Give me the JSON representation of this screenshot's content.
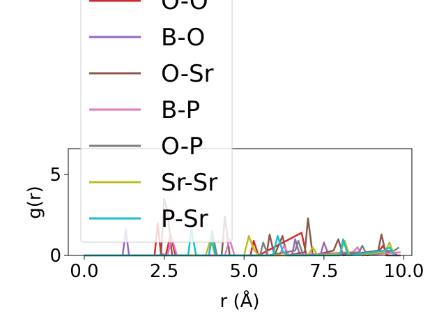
{
  "chart_data": {
    "type": "line",
    "title": "",
    "xlabel": "r (Å)",
    "ylabel": "g(r)",
    "xlim": [
      -0.5,
      10.25
    ],
    "ylim": [
      0,
      6.6
    ],
    "xticks": [
      0.0,
      2.5,
      5.0,
      7.5,
      10.0
    ],
    "xtick_labels": [
      "0.0",
      "2.5",
      "5.0",
      "7.5",
      "10.0"
    ],
    "yticks": [
      0,
      5
    ],
    "ytick_labels": [
      "0",
      "5"
    ],
    "grid": false,
    "legend_position": "upper-left",
    "series": [
      {
        "name": "O-O",
        "color": "#d62728",
        "points": [
          [
            0,
            0
          ],
          [
            2.2,
            0
          ],
          [
            2.3,
            2.0
          ],
          [
            2.4,
            0.1
          ],
          [
            2.55,
            0
          ],
          [
            2.7,
            1.3
          ],
          [
            2.85,
            0
          ],
          [
            5.2,
            0
          ],
          [
            5.3,
            0.9
          ],
          [
            5.45,
            0
          ],
          [
            6.8,
            1.4
          ],
          [
            6.95,
            0
          ],
          [
            9.2,
            0.2
          ],
          [
            9.35,
            0.6
          ],
          [
            9.5,
            0
          ]
        ]
      },
      {
        "name": "B-O",
        "color": "#9467bd",
        "points": [
          [
            0,
            0
          ],
          [
            1.2,
            0
          ],
          [
            1.3,
            1.6
          ],
          [
            1.4,
            0
          ],
          [
            6.5,
            0
          ],
          [
            6.6,
            1.0
          ],
          [
            6.75,
            0
          ],
          [
            7.4,
            0.1
          ],
          [
            7.5,
            0.8
          ],
          [
            7.65,
            0
          ],
          [
            9.6,
            0.3
          ],
          [
            9.8,
            0
          ]
        ]
      },
      {
        "name": "O-Sr",
        "color": "#8c564b",
        "points": [
          [
            0,
            0
          ],
          [
            2.4,
            0
          ],
          [
            2.5,
            3.5
          ],
          [
            2.6,
            2.8
          ],
          [
            2.75,
            0
          ],
          [
            4.3,
            0
          ],
          [
            4.4,
            2.4
          ],
          [
            4.55,
            0
          ],
          [
            5.7,
            0
          ],
          [
            5.8,
            1.3
          ],
          [
            5.95,
            0
          ],
          [
            6.2,
            1.2
          ],
          [
            6.35,
            0
          ],
          [
            6.9,
            0.2
          ],
          [
            7.0,
            2.3
          ],
          [
            7.15,
            0
          ],
          [
            7.8,
            0.3
          ],
          [
            7.95,
            1.0
          ],
          [
            8.1,
            0
          ],
          [
            9.2,
            0.3
          ],
          [
            9.3,
            1.3
          ],
          [
            9.45,
            0
          ],
          [
            9.9,
            0
          ]
        ]
      },
      {
        "name": "B-P",
        "color": "#e377c2",
        "points": [
          [
            0,
            0
          ],
          [
            2.6,
            0
          ],
          [
            2.75,
            1.0
          ],
          [
            2.9,
            0
          ],
          [
            4.4,
            0
          ],
          [
            4.55,
            1.0
          ],
          [
            4.7,
            0
          ],
          [
            6.1,
            0
          ],
          [
            6.25,
            0.6
          ],
          [
            6.4,
            0
          ],
          [
            8.4,
            0.2
          ],
          [
            8.55,
            0.5
          ],
          [
            8.7,
            0
          ],
          [
            9.9,
            0.2
          ]
        ]
      },
      {
        "name": "O-P",
        "color": "#7f7f7f",
        "points": [
          [
            0,
            0
          ],
          [
            3.9,
            0
          ],
          [
            4.0,
            1.5
          ],
          [
            4.15,
            0
          ],
          [
            5.5,
            0
          ],
          [
            5.6,
            0.8
          ],
          [
            5.75,
            0
          ],
          [
            6.6,
            0.3
          ],
          [
            6.7,
            0.9
          ],
          [
            6.85,
            0
          ],
          [
            8.6,
            0.2
          ],
          [
            8.7,
            0.6
          ],
          [
            8.85,
            0
          ],
          [
            9.7,
            0.3
          ],
          [
            9.85,
            0.5
          ]
        ]
      },
      {
        "name": "Sr-Sr",
        "color": "#bcbd22",
        "points": [
          [
            0,
            0
          ],
          [
            3.8,
            0
          ],
          [
            3.95,
            1.0
          ],
          [
            4.1,
            0
          ],
          [
            5.0,
            0
          ],
          [
            5.15,
            1.2
          ],
          [
            5.3,
            0.4
          ],
          [
            5.45,
            0
          ],
          [
            7.0,
            0
          ],
          [
            7.15,
            0.5
          ],
          [
            7.3,
            0
          ],
          [
            8.0,
            0.1
          ],
          [
            8.15,
            0.9
          ],
          [
            8.3,
            0
          ],
          [
            9.4,
            0.2
          ],
          [
            9.55,
            0.8
          ],
          [
            9.7,
            0
          ]
        ]
      },
      {
        "name": "P-Sr",
        "color": "#17becf",
        "points": [
          [
            0,
            0
          ],
          [
            3.25,
            0
          ],
          [
            3.35,
            1.6
          ],
          [
            3.5,
            0
          ],
          [
            3.9,
            0
          ],
          [
            4.0,
            1.2
          ],
          [
            4.1,
            0
          ],
          [
            5.9,
            0
          ],
          [
            6.05,
            1.2
          ],
          [
            6.2,
            0.3
          ],
          [
            6.35,
            0
          ],
          [
            8.0,
            0
          ],
          [
            8.1,
            1.0
          ],
          [
            8.25,
            0
          ],
          [
            9.4,
            0.3
          ],
          [
            9.55,
            0.5
          ],
          [
            9.7,
            0
          ]
        ]
      }
    ],
    "hidden_legend_partial_label": "O-O"
  }
}
